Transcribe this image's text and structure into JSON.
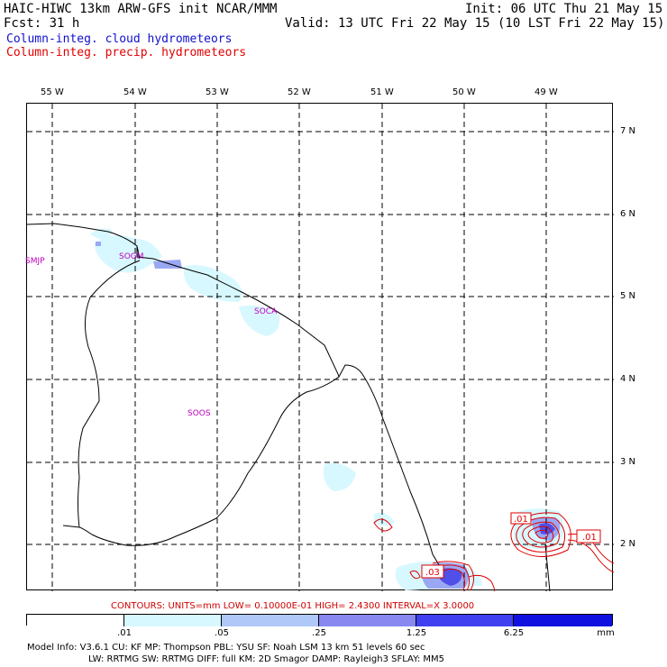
{
  "header": {
    "title": "HAIC-HIWC 13km ARW-GFS init   NCAR/MMM",
    "init": "Init: 06 UTC Thu 21 May 15",
    "fcst": "Fcst:   31 h",
    "valid": "Valid: 13 UTC Fri 22 May 15 (10 LST Fri 22 May 15)"
  },
  "legend": {
    "cloud": "Column-integ. cloud hydrometeors",
    "precip": "Column-integ. precip. hydrometeors",
    "cloud_color": "#1010d0",
    "precip_color": "#e00000"
  },
  "map": {
    "lon_labels": [
      "55 W",
      "54 W",
      "53 W",
      "52 W",
      "51 W",
      "50 W",
      "49 W"
    ],
    "lat_labels": [
      "7 N",
      "6 N",
      "5 N",
      "4 N",
      "3 N",
      "2 N"
    ],
    "stations": [
      "SMJP",
      "SOGM",
      "SOCA",
      "SOOS"
    ],
    "contour_labels": [
      ".01",
      ".01",
      ".03"
    ]
  },
  "contours_line": "CONTOURS:  UNITS=mm  LOW= 0.10000E-01  HIGH=  2.4300       INTERVAL=X  3.0000",
  "colorbar": {
    "labels": [
      ".01",
      ".05",
      ".25",
      "1.25",
      "6.25",
      "mm"
    ],
    "colors": [
      "#ffffff",
      "#d8f8ff",
      "#b0c8f8",
      "#8888f0",
      "#4040f0",
      "#1010e0"
    ]
  },
  "model_info": {
    "line1": "Model Info: V3.6.1   CU: KF      MP: Thompson    PBL: YSU      SF: Noah LSM    13 km   51 levels  60 sec",
    "line2": "LW: RRTMG    SW: RRTMG   DIFF: full    KM: 2D Smagor DAMP: Rayleigh3   SFLAY: MM5"
  }
}
